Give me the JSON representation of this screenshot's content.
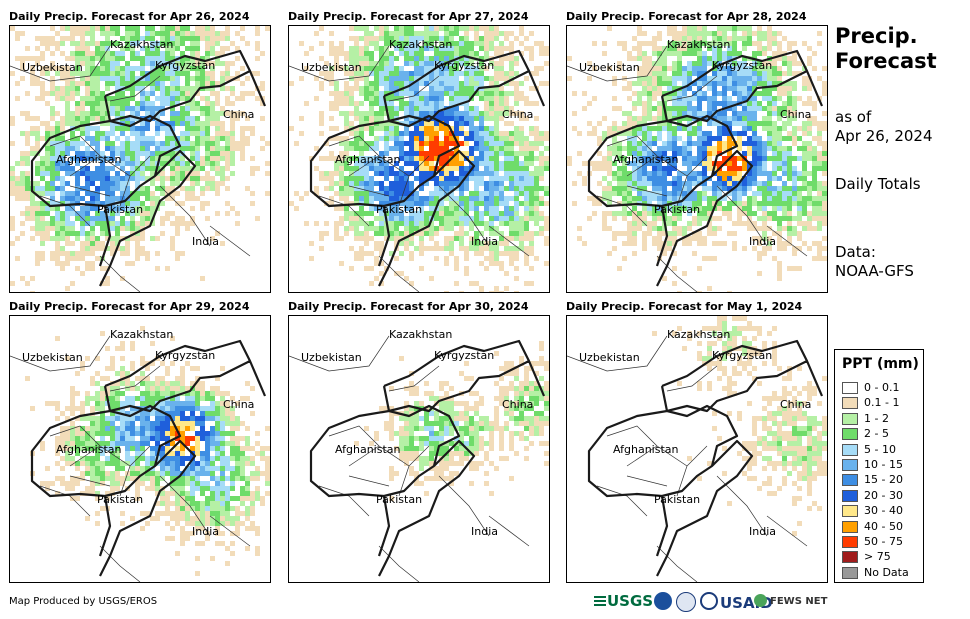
{
  "panels": [
    {
      "title": "Daily Precip. Forecast for Apr 26, 2024",
      "intensity": 2
    },
    {
      "title": "Daily Precip. Forecast for Apr 27, 2024",
      "intensity": 3
    },
    {
      "title": "Daily Precip. Forecast for Apr 28, 2024",
      "intensity": 3
    },
    {
      "title": "Daily Precip. Forecast for Apr 29, 2024",
      "intensity": 2
    },
    {
      "title": "Daily Precip. Forecast for Apr 30, 2024",
      "intensity": 1
    },
    {
      "title": "Daily Precip. Forecast for May 1, 2024",
      "intensity": 0
    }
  ],
  "map_labels": {
    "kazakhstan": "Kazakhstan",
    "uzbekistan": "Uzbekistan",
    "kyrgyzstan": "Kyrgyzstan",
    "china": "China",
    "afghanistan": "Afghanistan",
    "pakistan": "Pakistan",
    "india": "India"
  },
  "side": {
    "title_line1": "Precip.",
    "title_line2": "Forecast",
    "asof_line1": "as of",
    "asof_line2": "Apr 26, 2024",
    "totals": "Daily Totals",
    "data_line1": "Data:",
    "data_line2": "NOAA-GFS"
  },
  "legend": {
    "title": "PPT (mm)",
    "items": [
      {
        "label": "0 - 0.1",
        "color": "#ffffff"
      },
      {
        "label": "0.1 - 1",
        "color": "#f2dcb9"
      },
      {
        "label": "1 - 2",
        "color": "#b5f0a5"
      },
      {
        "label": "2 - 5",
        "color": "#6fdc6a"
      },
      {
        "label": "5 - 10",
        "color": "#a6dcf7"
      },
      {
        "label": "10 - 15",
        "color": "#6ab2ec"
      },
      {
        "label": "15 - 20",
        "color": "#3e8ee3"
      },
      {
        "label": "20 - 30",
        "color": "#1f5fdb"
      },
      {
        "label": "30 - 40",
        "color": "#ffe88a"
      },
      {
        "label": "40 - 50",
        "color": "#ffa000"
      },
      {
        "label": "50 - 75",
        "color": "#ff3c00"
      },
      {
        "label": "> 75",
        "color": "#a01c1c"
      },
      {
        "label": "No Data",
        "color": "#999999"
      }
    ]
  },
  "credit": "Map Produced by USGS/EROS",
  "logos": {
    "usgs": "USGS",
    "usaid": "USAID",
    "fews": "FEWS NET"
  }
}
